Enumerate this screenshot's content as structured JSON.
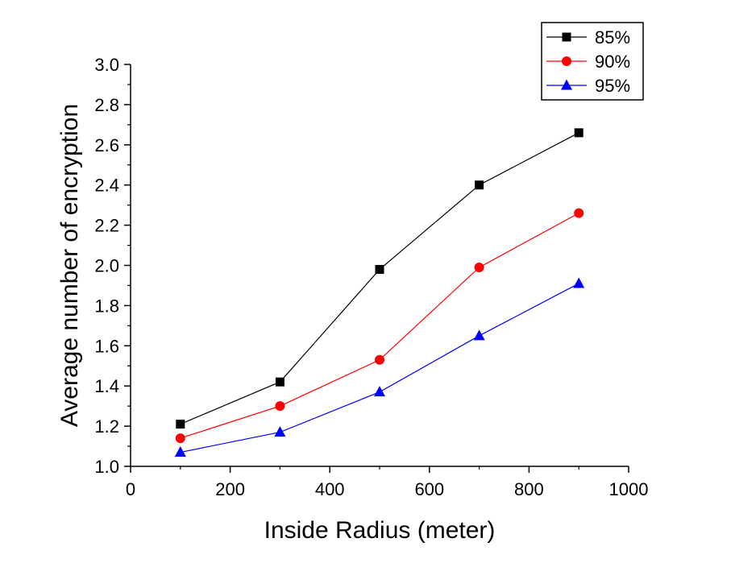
{
  "chart_data": {
    "type": "line",
    "title": "",
    "xlabel": "Inside Radius (meter)",
    "ylabel": "Average number of encryption",
    "xlim": [
      0,
      1000
    ],
    "ylim": [
      1.0,
      3.0
    ],
    "x_ticks": [
      "0",
      "200",
      "400",
      "600",
      "800",
      "1000"
    ],
    "y_ticks": [
      "1.0",
      "1.2",
      "1.4",
      "1.6",
      "1.8",
      "2.0",
      "2.2",
      "2.4",
      "2.6",
      "2.8",
      "3.0"
    ],
    "grid": false,
    "legend_position": "top-right",
    "x": [
      100,
      300,
      500,
      700,
      900
    ],
    "series": [
      {
        "name": "85%",
        "color": "#000000",
        "marker": "square",
        "values": [
          1.21,
          1.42,
          1.98,
          2.4,
          2.66
        ]
      },
      {
        "name": "90%",
        "color": "#ff0000",
        "marker": "circle",
        "values": [
          1.14,
          1.3,
          1.53,
          1.99,
          2.26
        ]
      },
      {
        "name": "95%",
        "color": "#0000ff",
        "marker": "triangle",
        "values": [
          1.07,
          1.17,
          1.37,
          1.65,
          1.91
        ]
      }
    ]
  }
}
